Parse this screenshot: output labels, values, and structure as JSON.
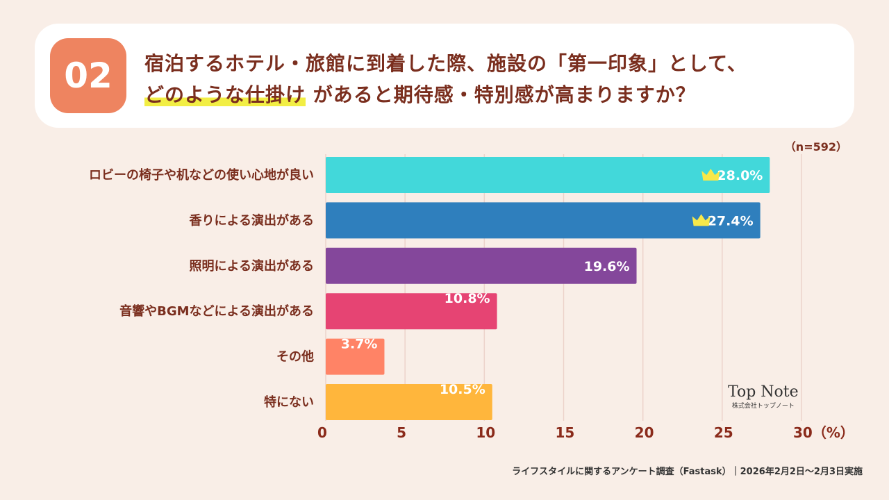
{
  "header": {
    "number": "02",
    "question_line1": "宿泊するホテル・旅館に到着した際、施設の「第一印象」として、",
    "question_highlight": "どのような仕掛け",
    "question_line2_rest": "があると期待感・特別感が高まりますか？"
  },
  "sample_size": "（n=592）",
  "chart_data": {
    "type": "bar",
    "orientation": "horizontal",
    "categories": [
      "ロビーの椅子や机などの使い心地が良い",
      "香りによる演出がある",
      "照明による演出がある",
      "音響やBGMなどによる演出がある",
      "その他",
      "特にない"
    ],
    "values": [
      28.0,
      27.4,
      19.6,
      10.8,
      3.7,
      10.5
    ],
    "value_labels": [
      "28.0%",
      "27.4%",
      "19.6%",
      "10.8%",
      "3.7%",
      "10.5%"
    ],
    "colors": [
      "#42d8da",
      "#2f7fbd",
      "#84479b",
      "#e64473",
      "#ff8366",
      "#ffb63c"
    ],
    "crowned": [
      true,
      true,
      false,
      false,
      false,
      false
    ],
    "xlim": [
      0,
      30
    ],
    "xticks": [
      "0",
      "5",
      "10",
      "15",
      "20",
      "25",
      "30（%）"
    ],
    "xtick_values": [
      0,
      5,
      10,
      15,
      20,
      25,
      30
    ],
    "grid": true
  },
  "logo": {
    "name": "Top Note",
    "sub": "株式会社トップノート"
  },
  "footer": "ライフスタイルに関するアンケート調査（Fastask）｜2026年2月2日〜2月3日実施"
}
